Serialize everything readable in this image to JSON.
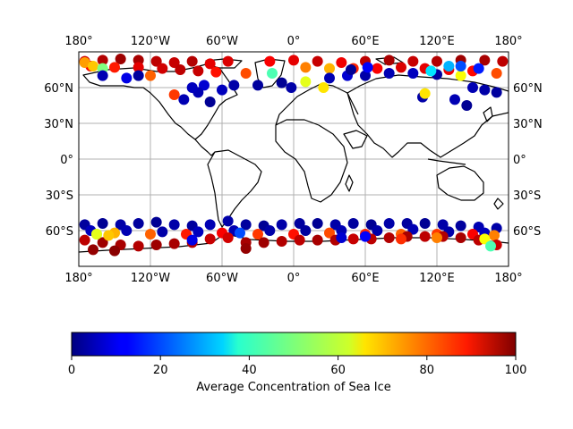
{
  "map": {
    "projection": "equirectangular",
    "lon_range": [
      -180,
      180
    ],
    "lat_range": [
      -90,
      90
    ],
    "grid": true,
    "lon_ticks": [
      {
        "value": -180,
        "label": "180°"
      },
      {
        "value": -120,
        "label": "120°W"
      },
      {
        "value": -60,
        "label": "60°W"
      },
      {
        "value": 0,
        "label": "0°"
      },
      {
        "value": 60,
        "label": "60°E"
      },
      {
        "value": 120,
        "label": "120°E"
      },
      {
        "value": 180,
        "label": "180°"
      }
    ],
    "lat_ticks": [
      {
        "value": 60,
        "label": "60°N"
      },
      {
        "value": 30,
        "label": "30°N"
      },
      {
        "value": 0,
        "label": "0°"
      },
      {
        "value": -30,
        "label": "30°S"
      },
      {
        "value": -60,
        "label": "60°S"
      }
    ],
    "coastline_color": "#000000",
    "gridline_color": "#b0b0b0"
  },
  "colorbar": {
    "label": "Average Concentration of Sea Ice",
    "colormap": "jet",
    "min": 0,
    "max": 100,
    "ticks": [
      {
        "value": 0,
        "label": "0"
      },
      {
        "value": 20,
        "label": "20"
      },
      {
        "value": 40,
        "label": "40"
      },
      {
        "value": 60,
        "label": "60"
      },
      {
        "value": 80,
        "label": "80"
      },
      {
        "value": 100,
        "label": "100"
      }
    ]
  },
  "chart_data": {
    "type": "scatter",
    "xlabel": "",
    "ylabel": "",
    "xlim": [
      -180,
      180
    ],
    "ylim": [
      -90,
      90
    ],
    "series": [
      {
        "points": [
          {
            "lon": -175,
            "lat": 82,
            "value": 92
          },
          {
            "lon": -160,
            "lat": 83,
            "value": 95
          },
          {
            "lon": -145,
            "lat": 84,
            "value": 97
          },
          {
            "lon": -130,
            "lat": 83,
            "value": 96
          },
          {
            "lon": -115,
            "lat": 82,
            "value": 94
          },
          {
            "lon": -100,
            "lat": 81,
            "value": 93
          },
          {
            "lon": -85,
            "lat": 82,
            "value": 95
          },
          {
            "lon": -70,
            "lat": 80,
            "value": 90
          },
          {
            "lon": -55,
            "lat": 82,
            "value": 91
          },
          {
            "lon": -20,
            "lat": 82,
            "value": 88
          },
          {
            "lon": 0,
            "lat": 83,
            "value": 90
          },
          {
            "lon": 20,
            "lat": 82,
            "value": 93
          },
          {
            "lon": 40,
            "lat": 81,
            "value": 89
          },
          {
            "lon": 60,
            "lat": 82,
            "value": 94
          },
          {
            "lon": 80,
            "lat": 83,
            "value": 96
          },
          {
            "lon": 100,
            "lat": 82,
            "value": 93
          },
          {
            "lon": 120,
            "lat": 82,
            "value": 95
          },
          {
            "lon": 140,
            "lat": 83,
            "value": 97
          },
          {
            "lon": 160,
            "lat": 83,
            "value": 96
          },
          {
            "lon": 175,
            "lat": 82,
            "value": 94
          },
          {
            "lon": -170,
            "lat": 78,
            "value": 88
          },
          {
            "lon": -150,
            "lat": 77,
            "value": 85
          },
          {
            "lon": -130,
            "lat": 77,
            "value": 90
          },
          {
            "lon": -110,
            "lat": 76,
            "value": 92
          },
          {
            "lon": -95,
            "lat": 75,
            "value": 94
          },
          {
            "lon": -80,
            "lat": 74,
            "value": 93
          },
          {
            "lon": -65,
            "lat": 73,
            "value": 86
          },
          {
            "lon": -40,
            "lat": 72,
            "value": 80
          },
          {
            "lon": 10,
            "lat": 77,
            "value": 75
          },
          {
            "lon": 30,
            "lat": 76,
            "value": 70
          },
          {
            "lon": 50,
            "lat": 76,
            "value": 84
          },
          {
            "lon": 70,
            "lat": 76,
            "value": 88
          },
          {
            "lon": 90,
            "lat": 77,
            "value": 91
          },
          {
            "lon": 110,
            "lat": 76,
            "value": 90
          },
          {
            "lon": 130,
            "lat": 75,
            "value": 89
          },
          {
            "lon": 150,
            "lat": 74,
            "value": 87
          },
          {
            "lon": 170,
            "lat": 72,
            "value": 80
          },
          {
            "lon": -175,
            "lat": 81,
            "value": 72
          },
          {
            "lon": -168,
            "lat": 78,
            "value": 68
          },
          {
            "lon": -160,
            "lat": 76,
            "value": 50
          },
          {
            "lon": -120,
            "lat": 70,
            "value": 78
          },
          {
            "lon": -100,
            "lat": 54,
            "value": 82
          },
          {
            "lon": -92,
            "lat": 50,
            "value": 5
          },
          {
            "lon": -140,
            "lat": 68,
            "value": 10
          },
          {
            "lon": -160,
            "lat": 70,
            "value": 5
          },
          {
            "lon": -130,
            "lat": 70,
            "value": 3
          },
          {
            "lon": -75,
            "lat": 62,
            "value": 8
          },
          {
            "lon": -60,
            "lat": 58,
            "value": 6
          },
          {
            "lon": -50,
            "lat": 62,
            "value": 4
          },
          {
            "lon": -30,
            "lat": 62,
            "value": 3
          },
          {
            "lon": -10,
            "lat": 64,
            "value": 2
          },
          {
            "lon": -2,
            "lat": 60,
            "value": 4
          },
          {
            "lon": -70,
            "lat": 48,
            "value": 2
          },
          {
            "lon": -80,
            "lat": 56,
            "value": 5
          },
          {
            "lon": -85,
            "lat": 60,
            "value": 6
          },
          {
            "lon": 10,
            "lat": 65,
            "value": 60
          },
          {
            "lon": 25,
            "lat": 60,
            "value": 65
          },
          {
            "lon": 30,
            "lat": 68,
            "value": 5
          },
          {
            "lon": 45,
            "lat": 70,
            "value": 8
          },
          {
            "lon": 60,
            "lat": 70,
            "value": 4
          },
          {
            "lon": 80,
            "lat": 72,
            "value": 5
          },
          {
            "lon": 100,
            "lat": 72,
            "value": 6
          },
          {
            "lon": 120,
            "lat": 71,
            "value": 3
          },
          {
            "lon": 140,
            "lat": 70,
            "value": 62
          },
          {
            "lon": 150,
            "lat": 60,
            "value": 5
          },
          {
            "lon": 160,
            "lat": 58,
            "value": 4
          },
          {
            "lon": 170,
            "lat": 56,
            "value": 3
          },
          {
            "lon": 145,
            "lat": 45,
            "value": 2
          },
          {
            "lon": 135,
            "lat": 50,
            "value": 5
          },
          {
            "lon": 108,
            "lat": 52,
            "value": 4
          },
          {
            "lon": 110,
            "lat": 55,
            "value": 65
          },
          {
            "lon": 48,
            "lat": 75,
            "value": 2
          },
          {
            "lon": 62,
            "lat": 77,
            "value": 12
          },
          {
            "lon": 115,
            "lat": 74,
            "value": 35
          },
          {
            "lon": -18,
            "lat": 72,
            "value": 45
          },
          {
            "lon": 130,
            "lat": 78,
            "value": 30
          },
          {
            "lon": 140,
            "lat": 78,
            "value": 20
          },
          {
            "lon": 155,
            "lat": 76,
            "value": 15
          },
          {
            "lon": -175,
            "lat": -55,
            "value": 3
          },
          {
            "lon": -160,
            "lat": -54,
            "value": 2
          },
          {
            "lon": -145,
            "lat": -55,
            "value": 4
          },
          {
            "lon": -130,
            "lat": -54,
            "value": 3
          },
          {
            "lon": -115,
            "lat": -53,
            "value": 2
          },
          {
            "lon": -100,
            "lat": -55,
            "value": 4
          },
          {
            "lon": -85,
            "lat": -56,
            "value": 3
          },
          {
            "lon": -70,
            "lat": -55,
            "value": 5
          },
          {
            "lon": -55,
            "lat": -52,
            "value": 4
          },
          {
            "lon": -40,
            "lat": -55,
            "value": 3
          },
          {
            "lon": -25,
            "lat": -56,
            "value": 2
          },
          {
            "lon": -10,
            "lat": -55,
            "value": 4
          },
          {
            "lon": 5,
            "lat": -54,
            "value": 3
          },
          {
            "lon": 20,
            "lat": -54,
            "value": 2
          },
          {
            "lon": 35,
            "lat": -55,
            "value": 4
          },
          {
            "lon": 50,
            "lat": -54,
            "value": 3
          },
          {
            "lon": 65,
            "lat": -55,
            "value": 2
          },
          {
            "lon": 80,
            "lat": -54,
            "value": 4
          },
          {
            "lon": 95,
            "lat": -54,
            "value": 3
          },
          {
            "lon": 110,
            "lat": -54,
            "value": 2
          },
          {
            "lon": 125,
            "lat": -55,
            "value": 4
          },
          {
            "lon": 140,
            "lat": -56,
            "value": 3
          },
          {
            "lon": 155,
            "lat": -57,
            "value": 5
          },
          {
            "lon": 170,
            "lat": -58,
            "value": 4
          },
          {
            "lon": -170,
            "lat": -60,
            "value": 6
          },
          {
            "lon": -140,
            "lat": -60,
            "value": 5
          },
          {
            "lon": -110,
            "lat": -61,
            "value": 4
          },
          {
            "lon": -80,
            "lat": -61,
            "value": 6
          },
          {
            "lon": -50,
            "lat": -60,
            "value": 5
          },
          {
            "lon": -20,
            "lat": -60,
            "value": 4
          },
          {
            "lon": 10,
            "lat": -60,
            "value": 3
          },
          {
            "lon": 40,
            "lat": -60,
            "value": 5
          },
          {
            "lon": 70,
            "lat": -60,
            "value": 4
          },
          {
            "lon": 100,
            "lat": -59,
            "value": 5
          },
          {
            "lon": 130,
            "lat": -61,
            "value": 4
          },
          {
            "lon": 160,
            "lat": -62,
            "value": 6
          },
          {
            "lon": -165,
            "lat": -63,
            "value": 55
          },
          {
            "lon": -150,
            "lat": -62,
            "value": 70
          },
          {
            "lon": -120,
            "lat": -63,
            "value": 78
          },
          {
            "lon": -90,
            "lat": -63,
            "value": 85
          },
          {
            "lon": -60,
            "lat": -62,
            "value": 88
          },
          {
            "lon": -45,
            "lat": -62,
            "value": 20
          },
          {
            "lon": -30,
            "lat": -63,
            "value": 82
          },
          {
            "lon": 0,
            "lat": -63,
            "value": 86
          },
          {
            "lon": 30,
            "lat": -62,
            "value": 80
          },
          {
            "lon": 60,
            "lat": -63,
            "value": 84
          },
          {
            "lon": 90,
            "lat": -63,
            "value": 78
          },
          {
            "lon": 120,
            "lat": -63,
            "value": 82
          },
          {
            "lon": 150,
            "lat": -63,
            "value": 88
          },
          {
            "lon": 168,
            "lat": -64,
            "value": 75
          },
          {
            "lon": -175,
            "lat": -68,
            "value": 94
          },
          {
            "lon": -160,
            "lat": -70,
            "value": 97
          },
          {
            "lon": -145,
            "lat": -72,
            "value": 96
          },
          {
            "lon": -130,
            "lat": -73,
            "value": 95
          },
          {
            "lon": -115,
            "lat": -72,
            "value": 97
          },
          {
            "lon": -100,
            "lat": -71,
            "value": 96
          },
          {
            "lon": -85,
            "lat": -70,
            "value": 95
          },
          {
            "lon": -70,
            "lat": -67,
            "value": 93
          },
          {
            "lon": -55,
            "lat": -66,
            "value": 92
          },
          {
            "lon": -40,
            "lat": -70,
            "value": 96
          },
          {
            "lon": -25,
            "lat": -70,
            "value": 97
          },
          {
            "lon": -10,
            "lat": -69,
            "value": 95
          },
          {
            "lon": 5,
            "lat": -68,
            "value": 94
          },
          {
            "lon": 20,
            "lat": -68,
            "value": 96
          },
          {
            "lon": 35,
            "lat": -68,
            "value": 95
          },
          {
            "lon": 50,
            "lat": -67,
            "value": 93
          },
          {
            "lon": 65,
            "lat": -67,
            "value": 94
          },
          {
            "lon": 80,
            "lat": -66,
            "value": 95
          },
          {
            "lon": 95,
            "lat": -65,
            "value": 96
          },
          {
            "lon": 110,
            "lat": -65,
            "value": 94
          },
          {
            "lon": 125,
            "lat": -65,
            "value": 95
          },
          {
            "lon": 140,
            "lat": -66,
            "value": 96
          },
          {
            "lon": 155,
            "lat": -68,
            "value": 94
          },
          {
            "lon": 170,
            "lat": -72,
            "value": 93
          },
          {
            "lon": -168,
            "lat": -76,
            "value": 98
          },
          {
            "lon": -150,
            "lat": -77,
            "value": 99
          },
          {
            "lon": -165,
            "lat": -63,
            "value": 60
          },
          {
            "lon": -155,
            "lat": -64,
            "value": 68
          },
          {
            "lon": -85,
            "lat": -68,
            "value": 10
          },
          {
            "lon": 60,
            "lat": -65,
            "value": 12
          },
          {
            "lon": 120,
            "lat": -66,
            "value": 75
          },
          {
            "lon": 160,
            "lat": -67,
            "value": 62
          },
          {
            "lon": 165,
            "lat": -73,
            "value": 45
          },
          {
            "lon": -40,
            "lat": -75,
            "value": 98
          },
          {
            "lon": 40,
            "lat": -66,
            "value": 8
          },
          {
            "lon": 90,
            "lat": -67,
            "value": 83
          }
        ]
      }
    ]
  }
}
